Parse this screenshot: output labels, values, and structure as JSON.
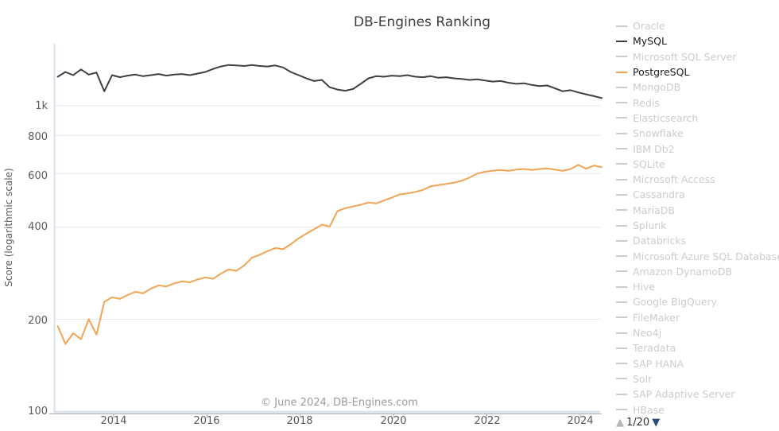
{
  "chart_data": {
    "type": "line",
    "title": "DB-Engines Ranking",
    "ylabel": "Score (logarithmic scale)",
    "watermark": "© June 2024, DB-Engines.com",
    "grid": "horizontal-only",
    "x_axis": {
      "start": 2012.8,
      "end": 2024.458,
      "ticks": [
        {
          "label": "2014",
          "value": 2014
        },
        {
          "label": "2016",
          "value": 2016
        },
        {
          "label": "2018",
          "value": 2018
        },
        {
          "label": "2020",
          "value": 2020
        },
        {
          "label": "2022",
          "value": 2022
        },
        {
          "label": "2024",
          "value": 2024
        }
      ]
    },
    "y_axis": {
      "scale": "logarithmic",
      "ylim": [
        100,
        1500
      ],
      "ticks": [
        {
          "label": "1k",
          "value": 1000
        },
        {
          "label": "800",
          "value": 800
        },
        {
          "label": "600",
          "value": 600
        },
        {
          "label": "400",
          "value": 400
        },
        {
          "label": "200",
          "value": 200
        },
        {
          "label": "100",
          "value": 100
        }
      ]
    },
    "series": [
      {
        "name": "MySQL",
        "color": "#3f3f3f",
        "values": [
          1245,
          1290,
          1260,
          1315,
          1265,
          1285,
          1115,
          1260,
          1240,
          1255,
          1265,
          1250,
          1260,
          1270,
          1255,
          1265,
          1270,
          1260,
          1275,
          1290,
          1320,
          1345,
          1360,
          1355,
          1350,
          1360,
          1350,
          1345,
          1355,
          1335,
          1290,
          1260,
          1230,
          1205,
          1215,
          1150,
          1130,
          1120,
          1135,
          1180,
          1230,
          1250,
          1245,
          1255,
          1250,
          1260,
          1245,
          1240,
          1250,
          1235,
          1240,
          1230,
          1225,
          1215,
          1220,
          1210,
          1200,
          1205,
          1190,
          1180,
          1185,
          1170,
          1160,
          1165,
          1140,
          1115,
          1125,
          1105,
          1090,
          1075,
          1060
        ]
      },
      {
        "name": "PostgreSQL",
        "color": "#f2a455",
        "values": [
          190,
          166,
          180,
          172,
          200,
          178,
          228,
          236,
          233,
          240,
          246,
          243,
          252,
          258,
          256,
          262,
          266,
          264,
          270,
          274,
          271,
          282,
          291,
          288,
          300,
          318,
          325,
          334,
          342,
          339,
          352,
          368,
          381,
          394,
          408,
          402,
          452,
          462,
          468,
          474,
          482,
          479,
          490,
          500,
          512,
          516,
          522,
          530,
          545,
          550,
          555,
          560,
          568,
          582,
          600,
          608,
          613,
          616,
          612,
          618,
          621,
          616,
          621,
          623,
          618,
          612,
          621,
          640,
          622,
          637,
          630
        ]
      }
    ],
    "legend_position": "right"
  },
  "legend": {
    "items": [
      {
        "label": "Oracle",
        "active": false,
        "color": "#cccccc"
      },
      {
        "label": "MySQL",
        "active": true,
        "color": "#3f3f3f"
      },
      {
        "label": "Microsoft SQL Server",
        "active": false,
        "color": "#cccccc"
      },
      {
        "label": "PostgreSQL",
        "active": true,
        "color": "#f2a455"
      },
      {
        "label": "MongoDB",
        "active": false,
        "color": "#cccccc"
      },
      {
        "label": "Redis",
        "active": false,
        "color": "#cccccc"
      },
      {
        "label": "Elasticsearch",
        "active": false,
        "color": "#cccccc"
      },
      {
        "label": "Snowflake",
        "active": false,
        "color": "#cccccc"
      },
      {
        "label": "IBM Db2",
        "active": false,
        "color": "#cccccc"
      },
      {
        "label": "SQLite",
        "active": false,
        "color": "#cccccc"
      },
      {
        "label": "Microsoft Access",
        "active": false,
        "color": "#cccccc"
      },
      {
        "label": "Cassandra",
        "active": false,
        "color": "#cccccc"
      },
      {
        "label": "MariaDB",
        "active": false,
        "color": "#cccccc"
      },
      {
        "label": "Splunk",
        "active": false,
        "color": "#cccccc"
      },
      {
        "label": "Databricks",
        "active": false,
        "color": "#cccccc"
      },
      {
        "label": "Microsoft Azure SQL Database",
        "active": false,
        "color": "#cccccc"
      },
      {
        "label": "Amazon DynamoDB",
        "active": false,
        "color": "#cccccc"
      },
      {
        "label": "Hive",
        "active": false,
        "color": "#cccccc"
      },
      {
        "label": "Google BigQuery",
        "active": false,
        "color": "#cccccc"
      },
      {
        "label": "FileMaker",
        "active": false,
        "color": "#cccccc"
      },
      {
        "label": "Neo4j",
        "active": false,
        "color": "#cccccc"
      },
      {
        "label": "Teradata",
        "active": false,
        "color": "#cccccc"
      },
      {
        "label": "SAP HANA",
        "active": false,
        "color": "#cccccc"
      },
      {
        "label": "Solr",
        "active": false,
        "color": "#cccccc"
      },
      {
        "label": "SAP Adaptive Server",
        "active": false,
        "color": "#cccccc"
      },
      {
        "label": "HBase",
        "active": false,
        "color": "#cccccc"
      }
    ],
    "pagination": {
      "up_glyph": "▲",
      "label": "1/20",
      "down_glyph": "▼",
      "up_color": "#b5b5b5",
      "down_color": "#2e4d76"
    }
  },
  "style_colors": {
    "grid": "#e8e8e8",
    "spine": "#d9e2ee",
    "axis": "#a6aab3",
    "active_text": "#1a1a1a"
  }
}
